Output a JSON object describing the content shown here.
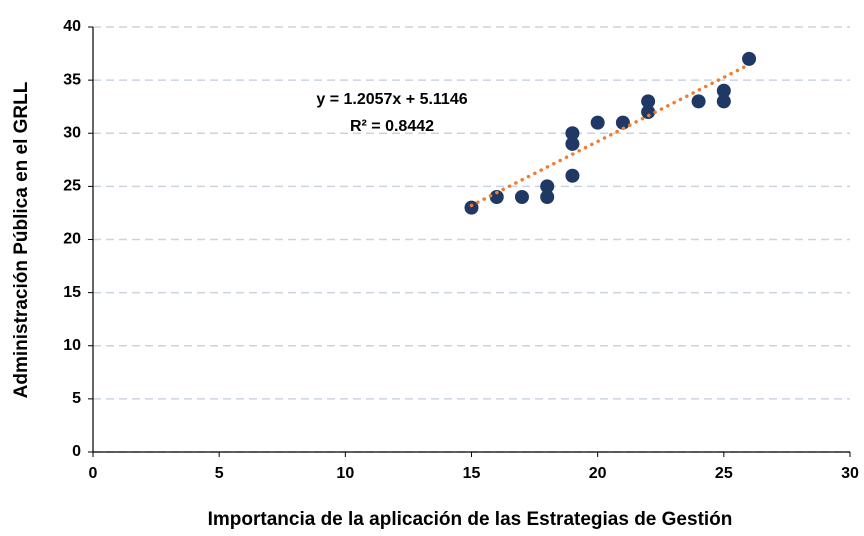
{
  "chart_data": {
    "type": "scatter",
    "x_label": "Importancia de la aplicación de las Estrategias de Gestión",
    "y_label": "Administración Pública en el GRLL",
    "x": [
      15,
      16,
      17,
      18,
      18,
      19,
      19,
      19,
      20,
      21,
      22,
      22,
      24,
      25,
      25,
      26
    ],
    "values": [
      23,
      24,
      24,
      25,
      24,
      30,
      29,
      26,
      31,
      31,
      33,
      32,
      33,
      34,
      33,
      37
    ],
    "color": "#1f3864",
    "xlim": [
      0,
      30
    ],
    "xticks": [
      0,
      5,
      10,
      15,
      20,
      25,
      30
    ],
    "ylim": [
      0,
      40
    ],
    "yticks": [
      0,
      5,
      10,
      15,
      20,
      25,
      30,
      35,
      40
    ],
    "grid": true,
    "trendline": {
      "slope": 1.2057,
      "intercept": 5.1146,
      "color": "#ed7d31"
    },
    "annotations": [
      "y = 1.2057x + 5.1146",
      "R² = 0.8442"
    ]
  }
}
